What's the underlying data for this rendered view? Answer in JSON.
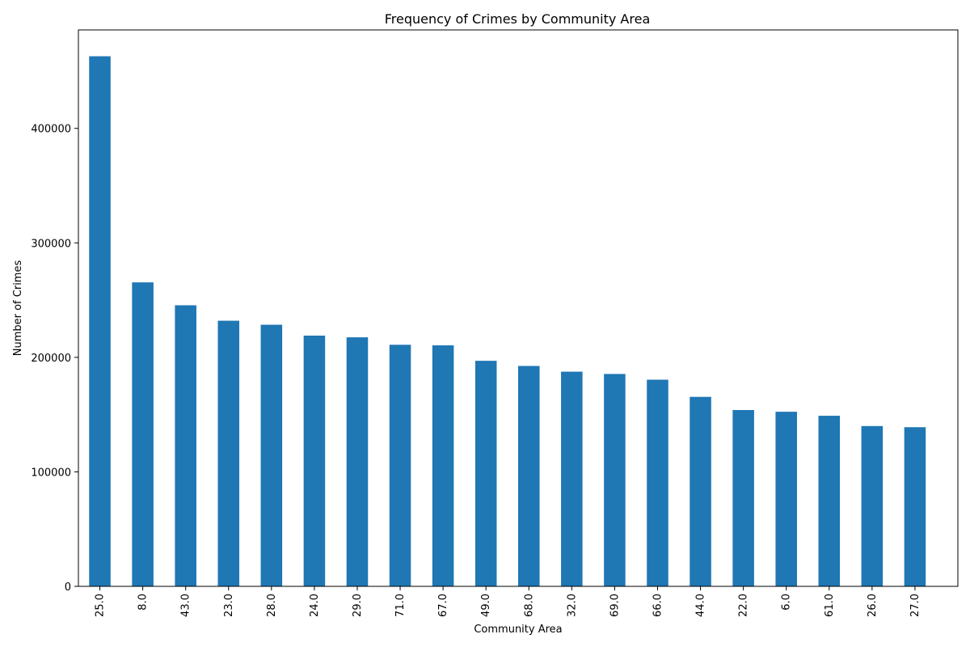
{
  "chart_data": {
    "type": "bar",
    "title": "Frequency of Crimes by Community Area",
    "xlabel": "Community Area",
    "ylabel": "Number of Crimes",
    "categories": [
      "25.0",
      "8.0",
      "43.0",
      "23.0",
      "28.0",
      "24.0",
      "29.0",
      "71.0",
      "67.0",
      "49.0",
      "68.0",
      "32.0",
      "69.0",
      "66.0",
      "44.0",
      "22.0",
      "6.0",
      "61.0",
      "26.0",
      "27.0"
    ],
    "values": [
      463000,
      265500,
      245500,
      232000,
      228500,
      219000,
      217500,
      211000,
      210500,
      197000,
      192500,
      187500,
      185500,
      180500,
      165500,
      154000,
      152500,
      149000,
      140000,
      139000
    ],
    "ylim": [
      0,
      486000
    ],
    "yticks": [
      0,
      100000,
      200000,
      300000,
      400000
    ],
    "bar_color": "#1f77b4",
    "grid": false,
    "legend": false
  }
}
